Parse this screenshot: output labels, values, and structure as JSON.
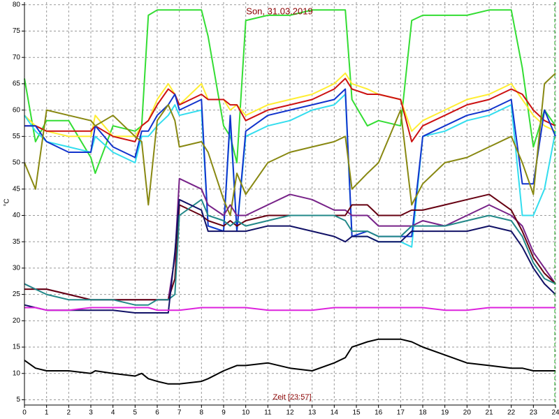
{
  "chart_data": {
    "type": "line",
    "title": "Son, 31.03.2019",
    "x_label": "Zeit [23:57]",
    "y_label": "°C",
    "xlim": [
      0,
      24
    ],
    "ylim": [
      4,
      80.5
    ],
    "grid": true,
    "xticks": [
      0,
      1,
      2,
      3,
      4,
      5,
      6,
      7,
      8,
      9,
      10,
      11,
      12,
      13,
      14,
      15,
      16,
      17,
      18,
      19,
      20,
      21,
      22,
      23,
      24
    ],
    "yticks": [
      5,
      10,
      15,
      20,
      25,
      30,
      35,
      40,
      45,
      50,
      55,
      60,
      65,
      70,
      75,
      80
    ],
    "x": [
      0,
      0.5,
      1,
      2,
      3,
      3.2,
      4,
      5,
      5.3,
      5.6,
      6,
      6.5,
      6.8,
      7,
      8,
      8.3,
      9,
      9.3,
      9.6,
      10,
      11,
      12,
      13,
      14,
      14.5,
      14.8,
      15.5,
      16,
      17,
      17.5,
      18,
      19,
      20,
      21,
      22,
      22.5,
      23,
      23.5,
      24
    ],
    "series": [
      {
        "color": "#33dd33",
        "values": [
          66,
          54,
          58,
          58,
          51,
          48,
          57,
          56,
          57,
          78,
          79,
          79,
          79,
          79,
          79,
          74,
          57,
          55,
          50,
          77,
          78,
          78,
          79,
          79,
          79,
          62,
          57,
          58,
          57,
          77,
          78,
          78,
          78,
          79,
          79,
          68,
          53,
          60,
          57
        ]
      },
      {
        "color": "#ffee33",
        "values": [
          59,
          57,
          56,
          55,
          55,
          59,
          55,
          55,
          57,
          58,
          62,
          65,
          63,
          61,
          65,
          62,
          62,
          60,
          61,
          59,
          61,
          62,
          63,
          65,
          67,
          65,
          64,
          63,
          62,
          56,
          58,
          60,
          62,
          63,
          65,
          62,
          59,
          57,
          56
        ]
      },
      {
        "color": "#cc1111",
        "values": [
          57,
          57,
          56,
          56,
          56,
          57,
          55,
          54,
          57,
          58,
          61,
          64,
          63,
          61,
          63,
          62,
          62,
          61,
          61,
          58,
          60,
          61,
          62,
          64,
          66,
          64,
          63,
          63,
          62,
          54,
          57,
          59,
          61,
          62,
          64,
          63,
          60,
          58,
          57
        ]
      },
      {
        "color": "#33ddee",
        "values": [
          59,
          56,
          54,
          53,
          52,
          55,
          52,
          50,
          55,
          55,
          57,
          59,
          61,
          59,
          60,
          38,
          37,
          58,
          37,
          55,
          57,
          58,
          60,
          61,
          63,
          36,
          36,
          35,
          35,
          34,
          55,
          56,
          58,
          59,
          61,
          40,
          40,
          45,
          56
        ]
      },
      {
        "color": "#1133cc",
        "values": [
          57,
          57,
          54,
          52,
          52,
          57,
          53,
          51,
          56,
          56,
          59,
          61,
          63,
          60,
          62,
          38,
          37,
          59,
          37,
          56,
          59,
          60,
          61,
          62,
          64,
          36,
          37,
          36,
          36,
          36,
          55,
          57,
          59,
          60,
          62,
          46,
          46,
          60,
          55
        ]
      },
      {
        "color": "#888811",
        "values": [
          50,
          45,
          60,
          59,
          58,
          57,
          59,
          55,
          54,
          42,
          58,
          61,
          58,
          53,
          54,
          52,
          43,
          40,
          48,
          44,
          50,
          52,
          53,
          54,
          55,
          45,
          48,
          50,
          60,
          42,
          46,
          50,
          51,
          53,
          55,
          50,
          44,
          65,
          67
        ]
      },
      {
        "color": "#772288",
        "values": [
          27,
          26,
          26,
          25,
          24,
          24,
          24,
          24,
          24,
          24,
          24,
          24,
          32,
          47,
          45,
          42,
          40,
          42,
          40,
          40,
          42,
          44,
          43,
          41,
          41,
          40,
          40,
          38,
          38,
          38,
          39,
          38,
          40,
          42,
          40,
          38,
          33,
          30,
          27
        ]
      },
      {
        "color": "#660011",
        "values": [
          26,
          26,
          26,
          25,
          24,
          24,
          24,
          24,
          24,
          24,
          24,
          24,
          28,
          42,
          40,
          39,
          38,
          39,
          38,
          39,
          40,
          40,
          40,
          40,
          40,
          42,
          42,
          40,
          40,
          41,
          41,
          42,
          43,
          44,
          41,
          37,
          32,
          29,
          27
        ]
      },
      {
        "color": "#228888",
        "values": [
          27,
          26,
          25,
          24,
          24,
          24,
          24,
          23,
          23,
          23,
          24,
          24,
          25,
          40,
          43,
          40,
          39,
          38,
          39,
          38,
          39,
          40,
          40,
          40,
          39,
          37,
          37,
          36,
          36,
          38,
          38,
          38,
          39,
          40,
          39,
          36,
          31,
          28,
          27
        ]
      },
      {
        "color": "#111166",
        "values": [
          23,
          22.5,
          22,
          22,
          22,
          22,
          22,
          21.5,
          21.5,
          21.5,
          21.5,
          21.5,
          33,
          43,
          41,
          37,
          37,
          37,
          37,
          37,
          38,
          38,
          37,
          36,
          35,
          36,
          36,
          35,
          35,
          37,
          37,
          37,
          37,
          38,
          37,
          34,
          30,
          27,
          25
        ]
      },
      {
        "color": "#dd22dd",
        "values": [
          22.5,
          22.5,
          22,
          22,
          22.5,
          22.5,
          22.5,
          22.5,
          22.5,
          22.5,
          22,
          22,
          22,
          22,
          22.5,
          22.5,
          22.5,
          22.5,
          22.5,
          22.5,
          22,
          22,
          22,
          22.5,
          22.5,
          22.5,
          22.5,
          22.5,
          22.5,
          22.5,
          22.5,
          22,
          22,
          22.5,
          22.5,
          22.5,
          22.5,
          22.5,
          22.5
        ]
      },
      {
        "color": "#000000",
        "values": [
          12.5,
          11,
          10.5,
          10.5,
          10,
          10.5,
          10,
          9.5,
          10,
          9,
          8.5,
          8,
          8,
          8,
          8.5,
          9,
          10.5,
          11,
          11.5,
          11.5,
          12,
          11,
          10.5,
          12,
          13,
          15,
          16,
          16.5,
          16.5,
          16,
          15,
          13.5,
          12,
          11.5,
          11,
          11,
          10.5,
          10.5,
          10.5
        ]
      }
    ]
  }
}
